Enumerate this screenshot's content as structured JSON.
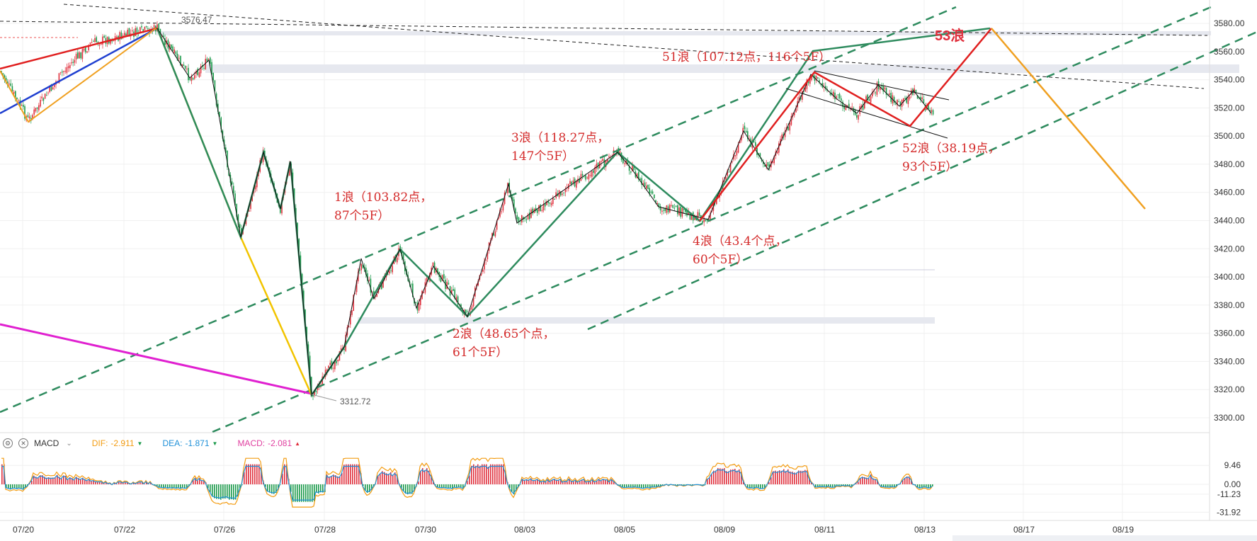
{
  "indicator": {
    "name": "MACD",
    "dif_label": "DIF:",
    "dif_value": "-2.911",
    "dea_label": "DEA:",
    "dea_value": "-1.871",
    "macd_label": "MACD:",
    "macd_value": "-2.081",
    "dif_color": "#f39c12",
    "dea_color": "#1e90d8",
    "macd_color": "#e040a0"
  },
  "chart_data": {
    "type": "line",
    "ylim": [
      3285,
      3590
    ],
    "yticks": [
      "3580.00",
      "3560.00",
      "3540.00",
      "3520.00",
      "3500.00",
      "3480.00",
      "3460.00",
      "3440.00",
      "3420.00",
      "3400.00",
      "3380.00",
      "3360.00",
      "3340.00",
      "3320.00",
      "3300.00"
    ],
    "ytick_values": [
      3580,
      3560,
      3540,
      3520,
      3500,
      3480,
      3460,
      3440,
      3420,
      3400,
      3380,
      3360,
      3340,
      3320,
      3300
    ],
    "xticks": [
      "07/20",
      "07/22",
      "07/26",
      "07/28",
      "07/30",
      "08/03",
      "08/05",
      "08/09",
      "08/11",
      "08/13",
      "08/17",
      "08/19"
    ],
    "price_markers": [
      {
        "label": "3576.47",
        "value": 3576.47
      },
      {
        "label": "3312.72",
        "value": 3312.72
      }
    ],
    "annotations": [
      {
        "lines": [
          "1浪（103.82点，",
          "87个5F）"
        ]
      },
      {
        "lines": [
          "2浪（48.65个点，",
          "61个5F）"
        ]
      },
      {
        "lines": [
          "3浪（118.27点，",
          "147个5F）"
        ]
      },
      {
        "lines": [
          "4浪（43.4个点，",
          "60个5F）"
        ]
      },
      {
        "lines": [
          "51浪（107.12点，116个5F）"
        ]
      },
      {
        "lines": [
          "52浪（38.19点，",
          "93个5F）"
        ]
      },
      {
        "lines": [
          "53浪"
        ]
      }
    ],
    "macd_panel": {
      "yticks": [
        "9.46",
        "0.00",
        "-11.23",
        "-31.92"
      ],
      "ytick_values": [
        9.46,
        0,
        -11.23,
        -31.92
      ]
    },
    "series_colors": {
      "up": "#e0303d",
      "down": "#1a9a4a",
      "green_trend": "#2e8b5e",
      "yellow": "#f2c400",
      "orange": "#f0a020",
      "red": "#e01f1f",
      "blue": "#1f3fd0",
      "magenta": "#e020d0"
    }
  }
}
